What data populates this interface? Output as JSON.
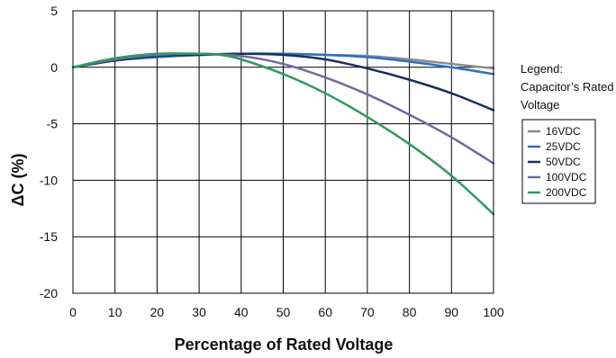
{
  "chart_data": {
    "type": "line",
    "title": "",
    "xlabel": "Percentage of Rated Voltage",
    "ylabel": "ΔC (%)",
    "xlim": [
      0,
      100
    ],
    "ylim": [
      -20,
      5
    ],
    "x_ticks": [
      0,
      10,
      20,
      30,
      40,
      50,
      60,
      70,
      80,
      90,
      100
    ],
    "y_ticks": [
      5,
      0,
      -5,
      -10,
      -15,
      -20
    ],
    "grid": true,
    "legend": {
      "placement": "right",
      "title_lines": [
        "Legend:",
        "Capacitor’s Rated",
        "Voltage"
      ]
    },
    "series": [
      {
        "name": "16VDC",
        "color": "#8a8a8a",
        "x": [
          0,
          10,
          20,
          30,
          40,
          50,
          60,
          70,
          80,
          90,
          100
        ],
        "y": [
          0,
          0.6,
          0.9,
          1.1,
          1.2,
          1.2,
          1.1,
          1.0,
          0.7,
          0.3,
          -0.1
        ]
      },
      {
        "name": "25VDC",
        "color": "#2f6fc4",
        "x": [
          0,
          10,
          20,
          30,
          40,
          50,
          60,
          70,
          80,
          90,
          100
        ],
        "y": [
          0,
          0.6,
          0.9,
          1.1,
          1.2,
          1.2,
          1.1,
          0.9,
          0.5,
          0.0,
          -0.6
        ]
      },
      {
        "name": "50VDC",
        "color": "#17305c",
        "x": [
          0,
          10,
          20,
          30,
          40,
          50,
          60,
          70,
          80,
          90,
          100
        ],
        "y": [
          0,
          0.6,
          1.0,
          1.1,
          1.2,
          1.1,
          0.7,
          -0.1,
          -1.1,
          -2.3,
          -3.8
        ]
      },
      {
        "name": "100VDC",
        "color": "#6f6aa8",
        "x": [
          0,
          10,
          20,
          30,
          40,
          50,
          60,
          70,
          80,
          90,
          100
        ],
        "y": [
          0,
          0.7,
          1.1,
          1.2,
          1.0,
          0.3,
          -0.9,
          -2.4,
          -4.2,
          -6.2,
          -8.5
        ]
      },
      {
        "name": "200VDC",
        "color": "#2e9a5e",
        "x": [
          0,
          10,
          20,
          30,
          35,
          40,
          50,
          60,
          70,
          80,
          90,
          100
        ],
        "y": [
          0,
          0.8,
          1.2,
          1.2,
          1.1,
          0.7,
          -0.6,
          -2.3,
          -4.4,
          -6.8,
          -9.6,
          -13.0
        ]
      }
    ]
  }
}
